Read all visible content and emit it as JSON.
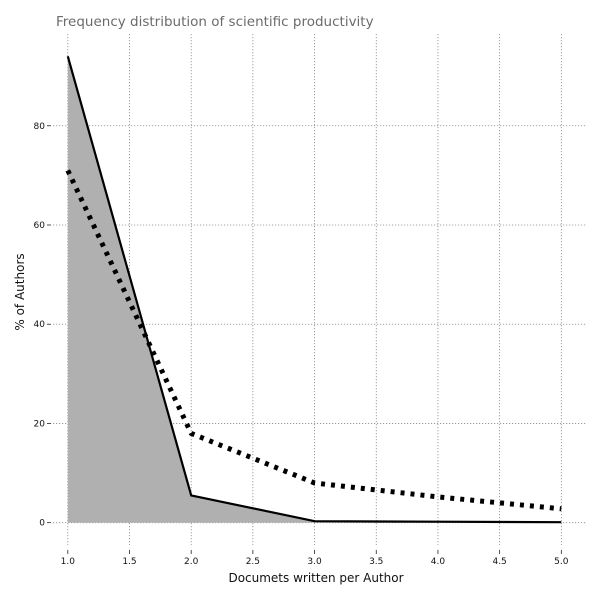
{
  "chart_data": {
    "type": "line",
    "title": "Frequency distribution of scientific productivity",
    "xlabel": "Documets written per Author",
    "ylabel": "% of Authors",
    "xlim": [
      0.88,
      5.2
    ],
    "ylim": [
      -4.5,
      98.5
    ],
    "xticks": [
      1.0,
      1.5,
      2.0,
      2.5,
      3.0,
      3.5,
      4.0,
      4.5,
      5.0
    ],
    "xtick_labels": [
      "1.0",
      "1.5",
      "2.0",
      "2.5",
      "3.0",
      "3.5",
      "4.0",
      "4.5",
      "5.0"
    ],
    "yticks": [
      0,
      20,
      40,
      60,
      80
    ],
    "ytick_labels": [
      "0",
      "20",
      "40",
      "60",
      "80"
    ],
    "grid": true,
    "series": [
      {
        "style": "solid-line-filled-area",
        "color": "#000000",
        "fill": "#b0b0b0",
        "x": [
          1,
          2,
          3,
          4,
          5
        ],
        "y": [
          94.0,
          5.5,
          0.3,
          0.2,
          0.1
        ]
      },
      {
        "style": "dotted-line",
        "color": "#000000",
        "x": [
          1,
          2,
          3,
          4,
          5
        ],
        "y": [
          71.0,
          18.0,
          8.0,
          5.2,
          2.8
        ]
      }
    ]
  }
}
